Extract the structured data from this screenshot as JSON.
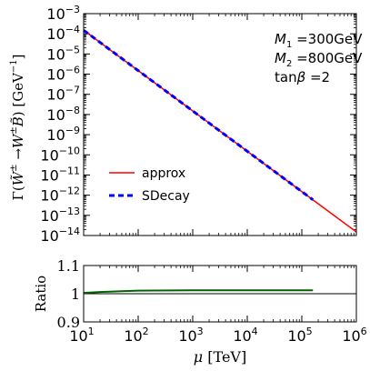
{
  "chart_data": [
    {
      "type": "line",
      "x_scale": "log",
      "y_scale": "log",
      "xlim": [
        10,
        1000000
      ],
      "ylim": [
        1e-14,
        0.001
      ],
      "ylabel": "Γ(W̃± → W± B̃) [GeV⁻¹]",
      "grid": false,
      "legend_position": "center-left",
      "annotations": [
        "M1 = 300GeV",
        "M2 = 800GeV",
        "tanβ = 2"
      ],
      "y_ticks": [
        {
          "v": 0.001,
          "label": "10-3"
        },
        {
          "v": 0.0001,
          "label": "10-4"
        },
        {
          "v": 1e-05,
          "label": "10-5"
        },
        {
          "v": 1e-06,
          "label": "10-6"
        },
        {
          "v": 1e-07,
          "label": "10-7"
        },
        {
          "v": 1e-08,
          "label": "10-8"
        },
        {
          "v": 1e-09,
          "label": "10-9"
        },
        {
          "v": 1e-10,
          "label": "10-10"
        },
        {
          "v": 1e-11,
          "label": "10-11"
        },
        {
          "v": 1e-12,
          "label": "10-12"
        },
        {
          "v": 1e-13,
          "label": "10-13"
        },
        {
          "v": 1e-14,
          "label": "10-14"
        }
      ],
      "series": [
        {
          "name": "approx",
          "color": "#ff0000",
          "style": "solid",
          "x": [
            10,
            100,
            1000,
            10000,
            100000,
            1000000
          ],
          "y": [
            0.00015,
            1.5e-06,
            1.5e-08,
            1.5e-10,
            1.5e-12,
            1.5e-14
          ]
        },
        {
          "name": "SDecay",
          "color": "#0000ff",
          "style": "dashed",
          "x": [
            10,
            100,
            1000,
            10000,
            100000,
            160000
          ],
          "y": [
            0.00015,
            1.5e-06,
            1.5e-08,
            1.5e-10,
            1.5e-12,
            5.9e-13
          ]
        }
      ]
    },
    {
      "type": "line",
      "x_scale": "log",
      "xlim": [
        10,
        1000000
      ],
      "ylim": [
        0.9,
        1.1
      ],
      "xlabel": "μ [TeV]",
      "ylabel": "Ratio",
      "reference_line": 1.0,
      "x_ticks": [
        {
          "v": 10,
          "label": "101"
        },
        {
          "v": 100,
          "label": "102"
        },
        {
          "v": 1000,
          "label": "103"
        },
        {
          "v": 10000,
          "label": "104"
        },
        {
          "v": 100000,
          "label": "105"
        },
        {
          "v": 1000000,
          "label": "106"
        }
      ],
      "y_ticks": [
        {
          "v": 0.9,
          "label": "0.9"
        },
        {
          "v": 1.0,
          "label": "1"
        },
        {
          "v": 1.1,
          "label": "1.1"
        }
      ],
      "series": [
        {
          "name": "",
          "color": "#006400",
          "x": [
            10,
            20,
            50,
            100,
            1000,
            10000,
            100000,
            160000
          ],
          "y": [
            1.003,
            1.006,
            1.009,
            1.011,
            1.012,
            1.012,
            1.012,
            1.012
          ]
        }
      ]
    }
  ]
}
